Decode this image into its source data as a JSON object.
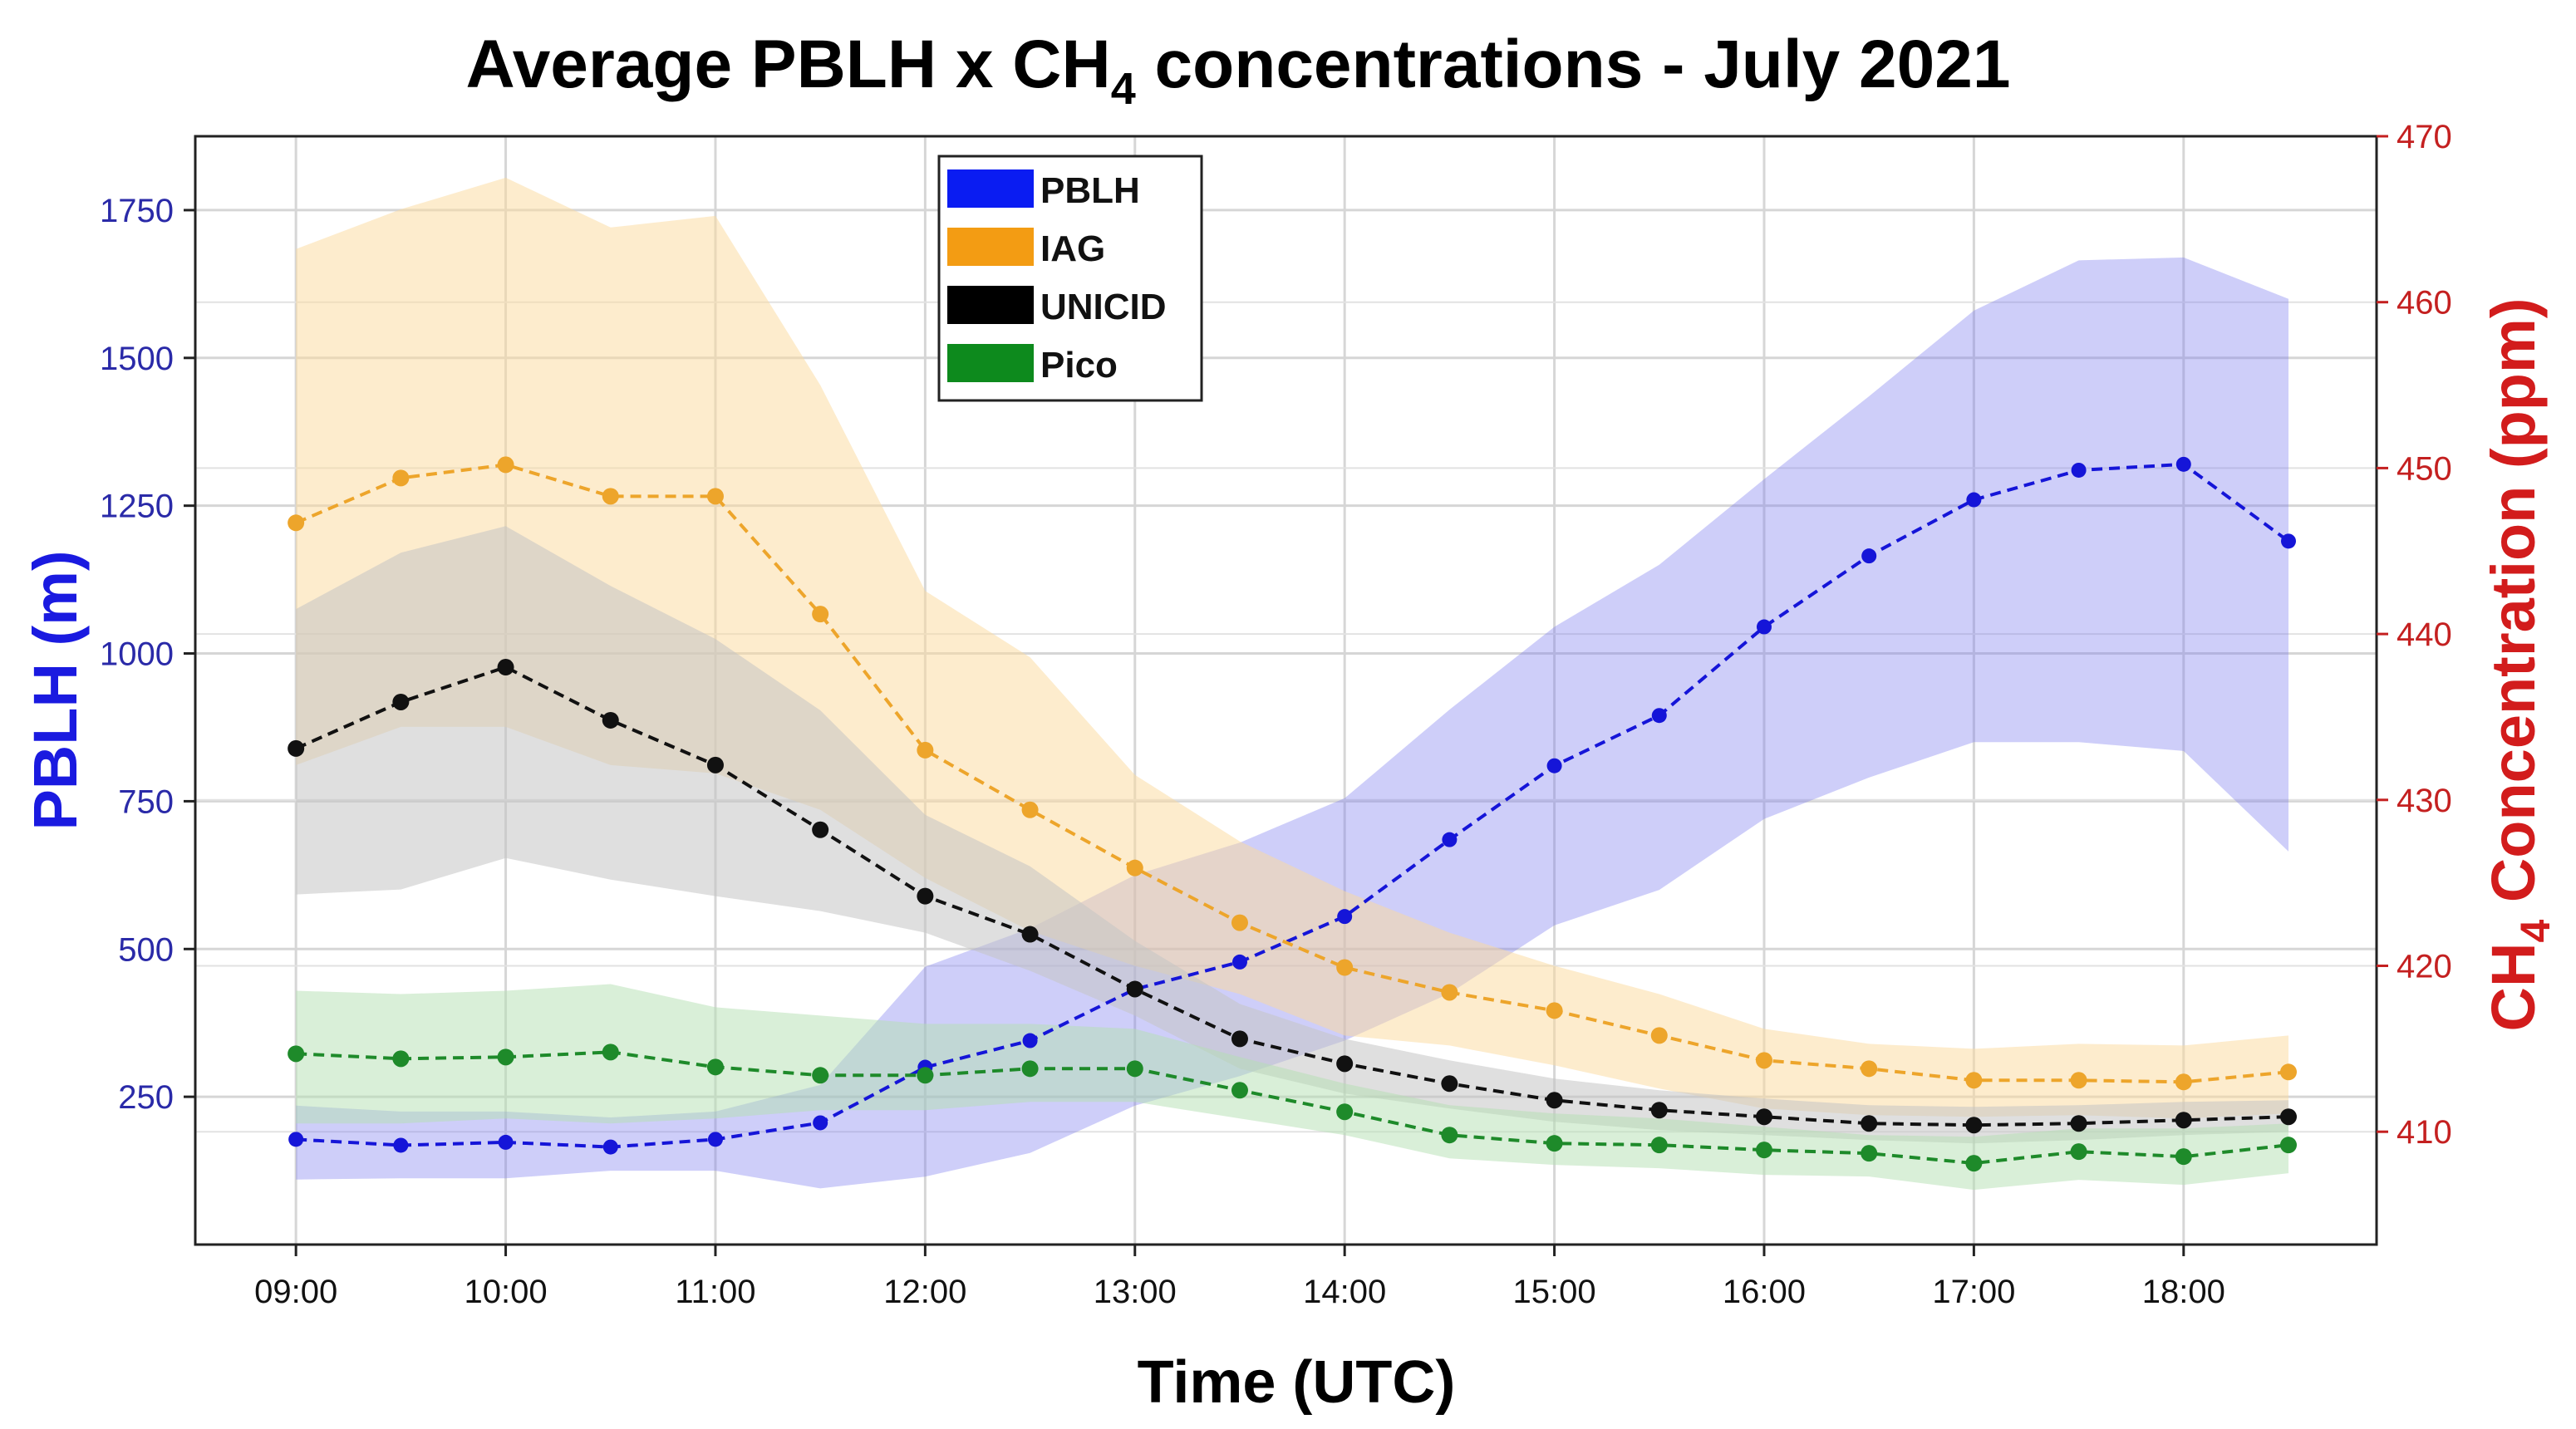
{
  "chart_data": {
    "type": "line",
    "title_parts": {
      "prefix": "Average PBLH x CH",
      "sub": "4",
      "suffix": " concentrations -  July 2021"
    },
    "xlabel": "Time (UTC)",
    "ylabel_left": "PBLH (m)",
    "ylabel_right_parts": {
      "prefix": "CH",
      "sub": "4",
      "suffix": " Concentration (ppm)"
    },
    "x": [
      9.0,
      9.5,
      10.0,
      10.5,
      11.0,
      11.5,
      12.0,
      12.5,
      13.0,
      13.5,
      14.0,
      14.5,
      15.0,
      15.5,
      16.0,
      16.5,
      17.0,
      17.5,
      18.0,
      18.5
    ],
    "xlim": [
      8.52,
      18.92
    ],
    "xticks": [
      {
        "value": 9,
        "label": "09:00"
      },
      {
        "value": 10,
        "label": "10:00"
      },
      {
        "value": 11,
        "label": "11:00"
      },
      {
        "value": 12,
        "label": "12:00"
      },
      {
        "value": 13,
        "label": "13:00"
      },
      {
        "value": 14,
        "label": "14:00"
      },
      {
        "value": 15,
        "label": "15:00"
      },
      {
        "value": 16,
        "label": "16:00"
      },
      {
        "value": 17,
        "label": "17:00"
      },
      {
        "value": 18,
        "label": "18:00"
      }
    ],
    "ylim_left": [
      0,
      1875
    ],
    "yticks_left": [
      250,
      500,
      750,
      1000,
      1250,
      1500,
      1750
    ],
    "ylim_right": [
      403.2,
      470
    ],
    "yticks_right": [
      410,
      420,
      430,
      440,
      450,
      460,
      470
    ],
    "grid": true,
    "legend_position": "top-center",
    "series": [
      {
        "name": "PBLH",
        "axis": "left",
        "color": "#1515d8",
        "band_color": "#7777ee",
        "legend_color": "#0a1cf2",
        "values": [
          178,
          168,
          173,
          165,
          178,
          206,
          300,
          345,
          432,
          478,
          555,
          685,
          810,
          895,
          1045,
          1165,
          1260,
          1310,
          1320,
          1190
        ],
        "lower": [
          110,
          112,
          112,
          125,
          125,
          95,
          115,
          155,
          235,
          285,
          345,
          425,
          540,
          600,
          720,
          790,
          850,
          850,
          835,
          665
        ],
        "upper": [
          235,
          225,
          225,
          215,
          225,
          270,
          470,
          535,
          625,
          680,
          755,
          905,
          1045,
          1150,
          1295,
          1435,
          1580,
          1665,
          1670,
          1600
        ]
      },
      {
        "name": "IAG",
        "axis": "right",
        "color": "#eda52b",
        "band_color": "#fbd99c",
        "legend_color": "#f39c13",
        "values": [
          446.7,
          449.4,
          450.2,
          448.3,
          448.3,
          441.2,
          433.0,
          429.4,
          425.9,
          422.6,
          419.9,
          418.4,
          417.3,
          415.8,
          414.3,
          413.8,
          413.1,
          413.1,
          413.0,
          413.6
        ],
        "lower": [
          432.1,
          434.4,
          434.4,
          432.1,
          431.6,
          429.4,
          425.3,
          422.1,
          420.0,
          418.3,
          415.8,
          415.2,
          414.0,
          412.6,
          411.4,
          411.0,
          410.9,
          411.0,
          410.8,
          411.1
        ],
        "upper": [
          463.2,
          465.6,
          467.5,
          464.5,
          465.2,
          455.0,
          442.6,
          438.6,
          431.5,
          427.5,
          424.5,
          422.0,
          420.0,
          418.3,
          416.2,
          415.3,
          415.0,
          415.3,
          415.2,
          415.8
        ]
      },
      {
        "name": "UNICID",
        "axis": "right",
        "color": "#111111",
        "band_color": "#c4c4c4",
        "legend_color": "#000000",
        "values": [
          433.1,
          435.9,
          438.0,
          434.8,
          432.1,
          428.2,
          424.2,
          421.9,
          418.6,
          415.6,
          414.1,
          412.9,
          411.9,
          411.3,
          410.9,
          410.5,
          410.4,
          410.5,
          410.7,
          410.9
        ],
        "lower": [
          424.3,
          424.6,
          426.5,
          425.2,
          424.2,
          423.3,
          422.0,
          419.7,
          417.0,
          413.8,
          412.3,
          411.4,
          410.6,
          410.1,
          409.8,
          409.5,
          409.3,
          409.5,
          409.8,
          410.0
        ],
        "upper": [
          441.5,
          444.9,
          446.5,
          442.9,
          439.7,
          435.4,
          429.1,
          426.0,
          421.5,
          417.7,
          415.6,
          414.3,
          413.2,
          412.5,
          412.0,
          411.6,
          411.5,
          411.6,
          411.8,
          411.9
        ]
      },
      {
        "name": "Pico",
        "axis": "right",
        "color": "#1e8a2a",
        "band_color": "#b3dfb2",
        "legend_color": "#0d8a1d",
        "values": [
          414.7,
          414.4,
          414.5,
          414.8,
          413.9,
          413.4,
          413.4,
          413.8,
          413.8,
          412.5,
          411.2,
          409.8,
          409.3,
          409.2,
          408.9,
          408.7,
          408.1,
          408.8,
          408.5,
          409.2
        ],
        "lower": [
          410.5,
          410.5,
          410.8,
          410.5,
          410.8,
          411.3,
          411.3,
          411.8,
          411.8,
          410.8,
          409.8,
          408.4,
          408.0,
          407.8,
          407.4,
          407.3,
          406.5,
          407.1,
          406.8,
          407.5
        ],
        "upper": [
          418.5,
          418.3,
          418.5,
          418.9,
          417.5,
          417.0,
          416.5,
          416.5,
          416.2,
          414.5,
          412.9,
          411.6,
          411.1,
          410.8,
          410.3,
          409.8,
          409.7,
          410.2,
          410.2,
          410.5
        ]
      }
    ]
  }
}
